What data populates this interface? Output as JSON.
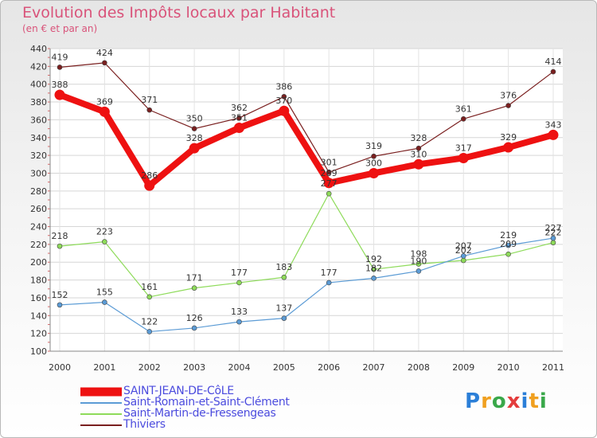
{
  "title": "Evolution des Impôts locaux par Habitant",
  "subtitle": "(en € et par an)",
  "logo": {
    "text": "Proxiti",
    "colors": [
      "#2b7fd8",
      "#f0a020",
      "#3aa84a",
      "#e43c3c",
      "#2b7fd8",
      "#f0a020",
      "#3aa84a"
    ]
  },
  "chart_data": {
    "type": "line",
    "x": [
      "2000",
      "2001",
      "2002",
      "2003",
      "2004",
      "2005",
      "2006",
      "2007",
      "2008",
      "2009",
      "2010",
      "2011"
    ],
    "ylim": [
      100,
      440
    ],
    "yticks": [
      100,
      120,
      140,
      160,
      180,
      200,
      220,
      240,
      260,
      280,
      300,
      320,
      340,
      360,
      380,
      400,
      420,
      440
    ],
    "grid": true,
    "legend_position": "bottom-left",
    "series": [
      {
        "name": "Thiviers",
        "color": "#7a1f1f",
        "values": [
          419,
          424,
          371,
          350,
          362,
          386,
          301,
          319,
          328,
          361,
          376,
          414
        ]
      },
      {
        "name": "Saint-Martin-de-Fressengeas",
        "color": "#8edb5a",
        "values": [
          218,
          223,
          161,
          171,
          177,
          183,
          277,
          192,
          198,
          202,
          209,
          222
        ]
      },
      {
        "name": "Saint-Romain-et-Saint-Clément",
        "color": "#5b9bd5",
        "values": [
          152,
          155,
          122,
          126,
          133,
          137,
          177,
          182,
          190,
          207,
          219,
          227
        ]
      },
      {
        "name": "SAINT-JEAN-DE-CôLE",
        "color": "#ee1111",
        "values": [
          388,
          369,
          286,
          328,
          351,
          370,
          289,
          300,
          310,
          317,
          329,
          343
        ]
      }
    ],
    "data_labels": {
      "Thiviers": [
        "419",
        "424",
        "371",
        "350",
        "362",
        "386",
        "301",
        "319",
        "328",
        "361",
        "376",
        "414"
      ],
      "Saint-Martin-de-Fressengeas": [
        "218",
        "223",
        "161",
        "171",
        "177",
        "183",
        "277",
        "192",
        "198",
        "202",
        "209",
        "222"
      ],
      "Saint-Romain-et-Saint-Clément": [
        "152",
        "155",
        "122",
        "126",
        "133",
        "137",
        "177",
        "182",
        "190",
        "207",
        "219",
        "227"
      ],
      "SAINT-JEAN-DE-CôLE": [
        "388",
        "369",
        "286",
        "328",
        "351",
        "370",
        "289",
        "300",
        "310",
        "317",
        "329",
        "343"
      ]
    }
  },
  "legend": [
    {
      "label": "SAINT-JEAN-DE-CôLE",
      "color": "#ee1111",
      "weight": "thick"
    },
    {
      "label": "Saint-Romain-et-Saint-Clément",
      "color": "#5b9bd5",
      "weight": "thin"
    },
    {
      "label": "Saint-Martin-de-Fressengeas",
      "color": "#8edb5a",
      "weight": "thin"
    },
    {
      "label": "Thiviers",
      "color": "#7a1f1f",
      "weight": "thin"
    }
  ]
}
